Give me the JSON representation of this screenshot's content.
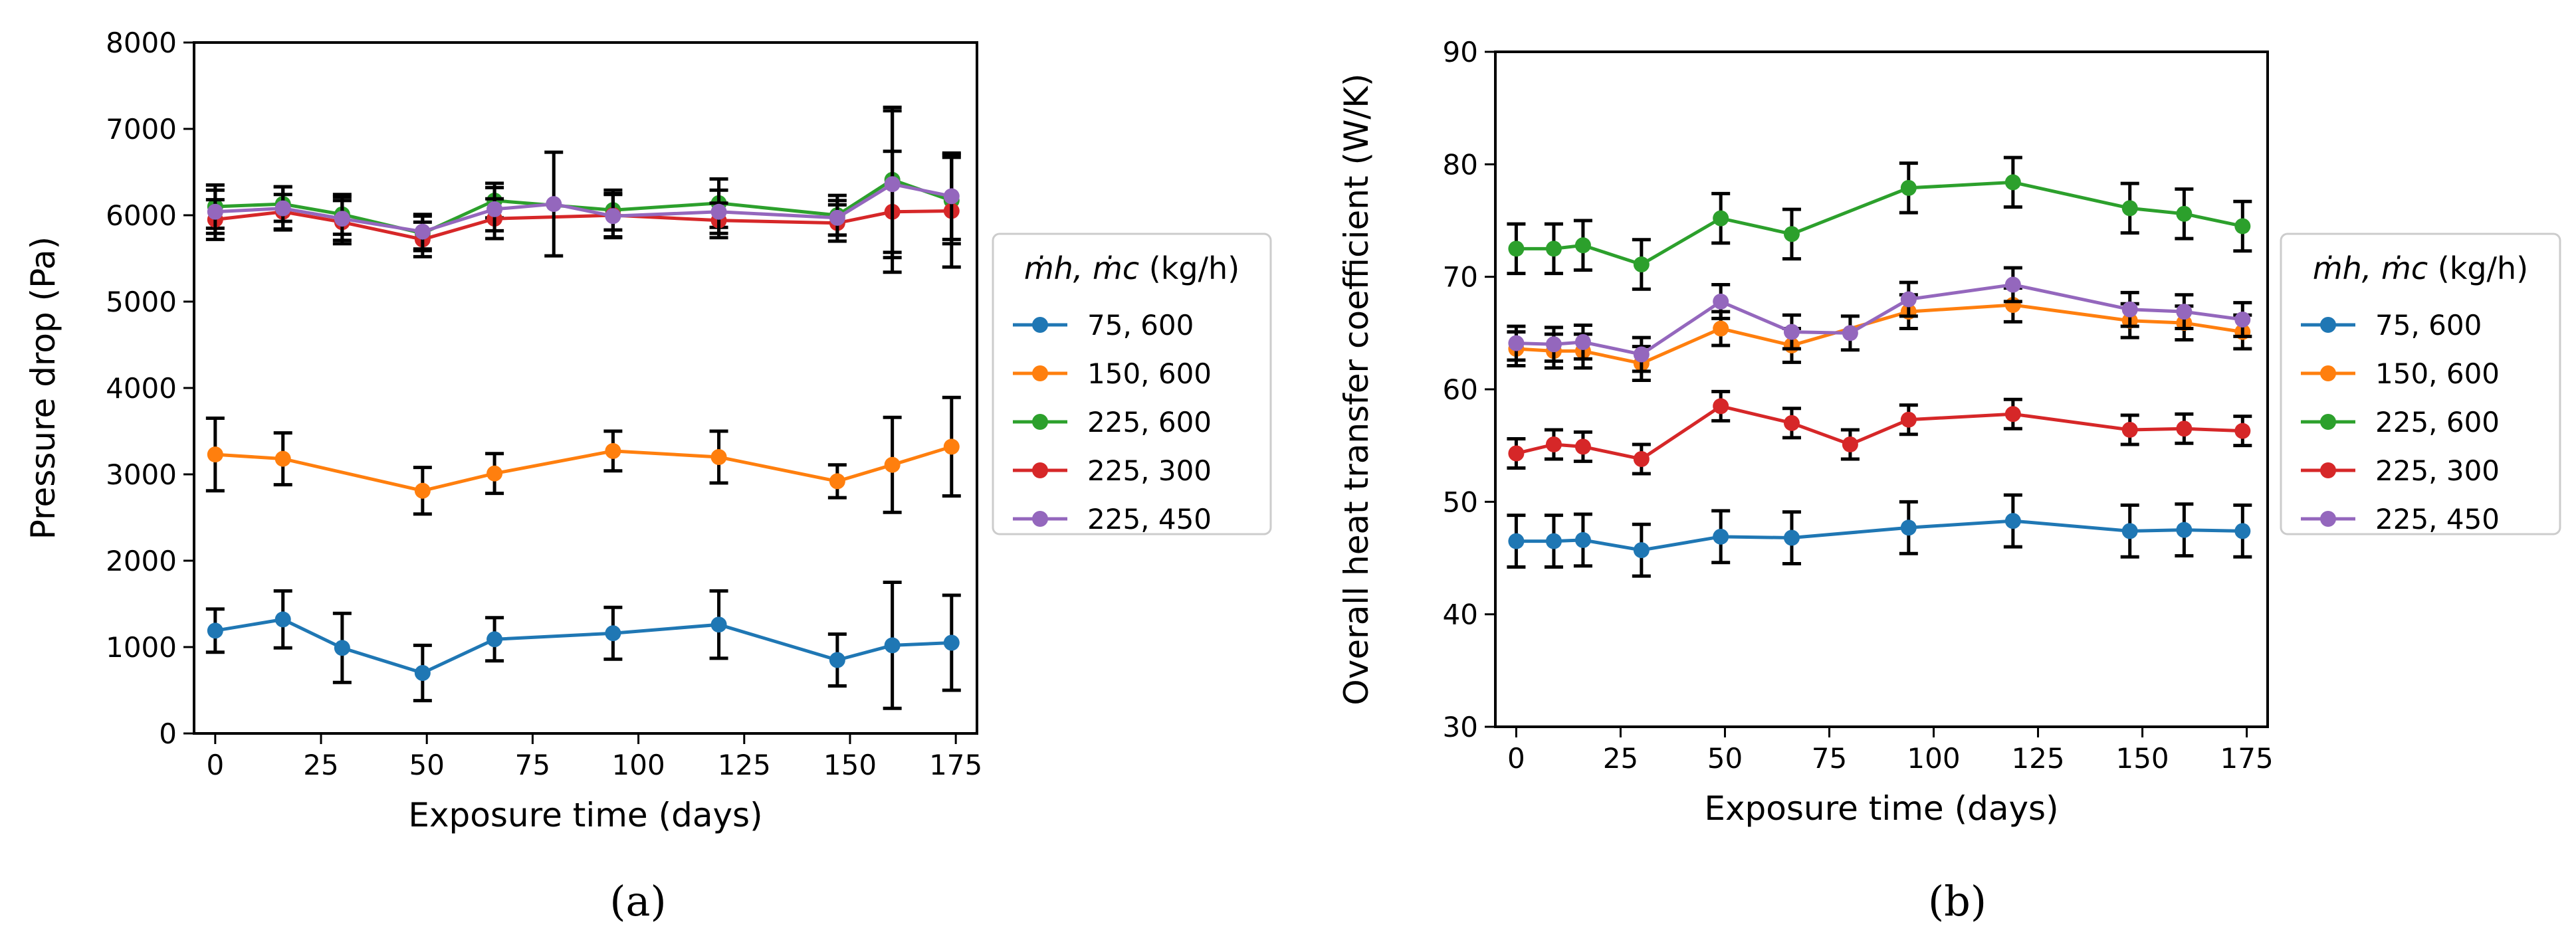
{
  "chart_data": [
    {
      "type": "line",
      "panel_label": "(a)",
      "xlabel": "Exposure time (days)",
      "ylabel": "Pressure drop (Pa)",
      "xlim": [
        -5,
        180
      ],
      "ylim": [
        0,
        8000
      ],
      "xticks": [
        0,
        25,
        50,
        75,
        100,
        125,
        150,
        175
      ],
      "yticks": [
        0,
        1000,
        2000,
        3000,
        4000,
        5000,
        6000,
        7000,
        8000
      ],
      "grid": false,
      "legend": {
        "position": "right-outside",
        "title_base": "ṁh, ṁc",
        "title_unit": " (kg/h)"
      },
      "series": [
        {
          "name": "75, 600",
          "color": "#1f77b4",
          "x": [
            0,
            16,
            30,
            49,
            66,
            94,
            119,
            147,
            160,
            174
          ],
          "y": [
            1190,
            1320,
            990,
            700,
            1090,
            1160,
            1260,
            850,
            1020,
            1050
          ],
          "err": [
            250,
            330,
            400,
            320,
            250,
            300,
            390,
            300,
            730,
            550
          ]
        },
        {
          "name": "150, 600",
          "color": "#ff7f0e",
          "x": [
            0,
            16,
            49,
            66,
            94,
            119,
            147,
            160,
            174
          ],
          "y": [
            3230,
            3180,
            2810,
            3010,
            3270,
            3200,
            2920,
            3110,
            3320
          ],
          "err": [
            420,
            300,
            270,
            230,
            230,
            300,
            190,
            550,
            570
          ]
        },
        {
          "name": "225, 600",
          "color": "#2ca02c",
          "x": [
            0,
            16,
            30,
            49,
            66,
            94,
            119,
            147,
            160,
            174
          ],
          "y": [
            6100,
            6130,
            6010,
            5790,
            6170,
            6060,
            6140,
            6000,
            6410,
            6170
          ],
          "err": [
            250,
            200,
            230,
            200,
            200,
            230,
            280,
            230,
            840,
            500
          ]
        },
        {
          "name": "225, 300",
          "color": "#d62728",
          "x": [
            0,
            16,
            30,
            49,
            66,
            94,
            119,
            147,
            160,
            174
          ],
          "y": [
            5950,
            6040,
            5920,
            5720,
            5960,
            6000,
            5940,
            5910,
            6040,
            6050
          ],
          "err": [
            230,
            200,
            250,
            200,
            230,
            250,
            200,
            210,
            700,
            650
          ]
        },
        {
          "name": "225, 450",
          "color": "#9467bd",
          "x": [
            0,
            16,
            30,
            49,
            66,
            80,
            94,
            119,
            147,
            160,
            174
          ],
          "y": [
            6040,
            6080,
            5960,
            5810,
            6070,
            6130,
            5990,
            6040,
            5970,
            6360,
            6220
          ],
          "err": [
            250,
            250,
            250,
            200,
            250,
            600,
            250,
            250,
            200,
            850,
            500
          ]
        }
      ]
    },
    {
      "type": "line",
      "panel_label": "(b)",
      "xlabel": "Exposure time (days)",
      "ylabel": "Overall heat transfer coefficient (W/K)",
      "xlim": [
        -5,
        180
      ],
      "ylim": [
        30,
        90
      ],
      "xticks": [
        0,
        25,
        50,
        75,
        100,
        125,
        150,
        175
      ],
      "yticks": [
        30,
        40,
        50,
        60,
        70,
        80,
        90
      ],
      "grid": false,
      "legend": {
        "position": "right-outside",
        "title_base": "ṁh, ṁc",
        "title_unit": " (kg/h)"
      },
      "series": [
        {
          "name": "75, 600",
          "color": "#1f77b4",
          "x": [
            0,
            9,
            16,
            30,
            49,
            66,
            94,
            119,
            147,
            160,
            174
          ],
          "y": [
            46.5,
            46.5,
            46.6,
            45.7,
            46.9,
            46.8,
            47.7,
            48.3,
            47.4,
            47.5,
            47.4
          ],
          "err": [
            2.3,
            2.3,
            2.3,
            2.3,
            2.3,
            2.3,
            2.3,
            2.3,
            2.3,
            2.3,
            2.3
          ]
        },
        {
          "name": "150, 600",
          "color": "#ff7f0e",
          "x": [
            0,
            9,
            16,
            30,
            49,
            66,
            94,
            119,
            147,
            160,
            174
          ],
          "y": [
            63.6,
            63.4,
            63.4,
            62.3,
            65.4,
            63.9,
            66.9,
            67.5,
            66.1,
            65.9,
            65.1
          ],
          "err": [
            1.5,
            1.5,
            1.5,
            1.5,
            1.5,
            1.5,
            1.5,
            1.5,
            1.5,
            1.5,
            1.5
          ]
        },
        {
          "name": "225, 600",
          "color": "#2ca02c",
          "x": [
            0,
            9,
            16,
            30,
            49,
            66,
            94,
            119,
            147,
            160,
            174
          ],
          "y": [
            72.5,
            72.5,
            72.8,
            71.1,
            75.2,
            73.8,
            77.9,
            78.4,
            76.1,
            75.6,
            74.5
          ],
          "err": [
            2.2,
            2.2,
            2.2,
            2.2,
            2.2,
            2.2,
            2.2,
            2.2,
            2.2,
            2.2,
            2.2
          ]
        },
        {
          "name": "225, 300",
          "color": "#d62728",
          "x": [
            0,
            9,
            16,
            30,
            49,
            66,
            80,
            94,
            119,
            147,
            160,
            174
          ],
          "y": [
            54.3,
            55.1,
            54.9,
            53.8,
            58.5,
            57.0,
            55.1,
            57.3,
            57.8,
            56.4,
            56.5,
            56.3
          ],
          "err": [
            1.3,
            1.3,
            1.3,
            1.3,
            1.3,
            1.3,
            1.3,
            1.3,
            1.3,
            1.3,
            1.3,
            1.3
          ]
        },
        {
          "name": "225, 450",
          "color": "#9467bd",
          "x": [
            0,
            9,
            16,
            30,
            49,
            66,
            80,
            94,
            119,
            147,
            160,
            174
          ],
          "y": [
            64.1,
            64.0,
            64.2,
            63.1,
            67.8,
            65.1,
            65.0,
            68.0,
            69.3,
            67.1,
            66.9,
            66.2
          ],
          "err": [
            1.5,
            1.5,
            1.5,
            1.5,
            1.5,
            1.5,
            1.5,
            1.5,
            1.5,
            1.5,
            1.5,
            1.5
          ]
        }
      ]
    }
  ]
}
